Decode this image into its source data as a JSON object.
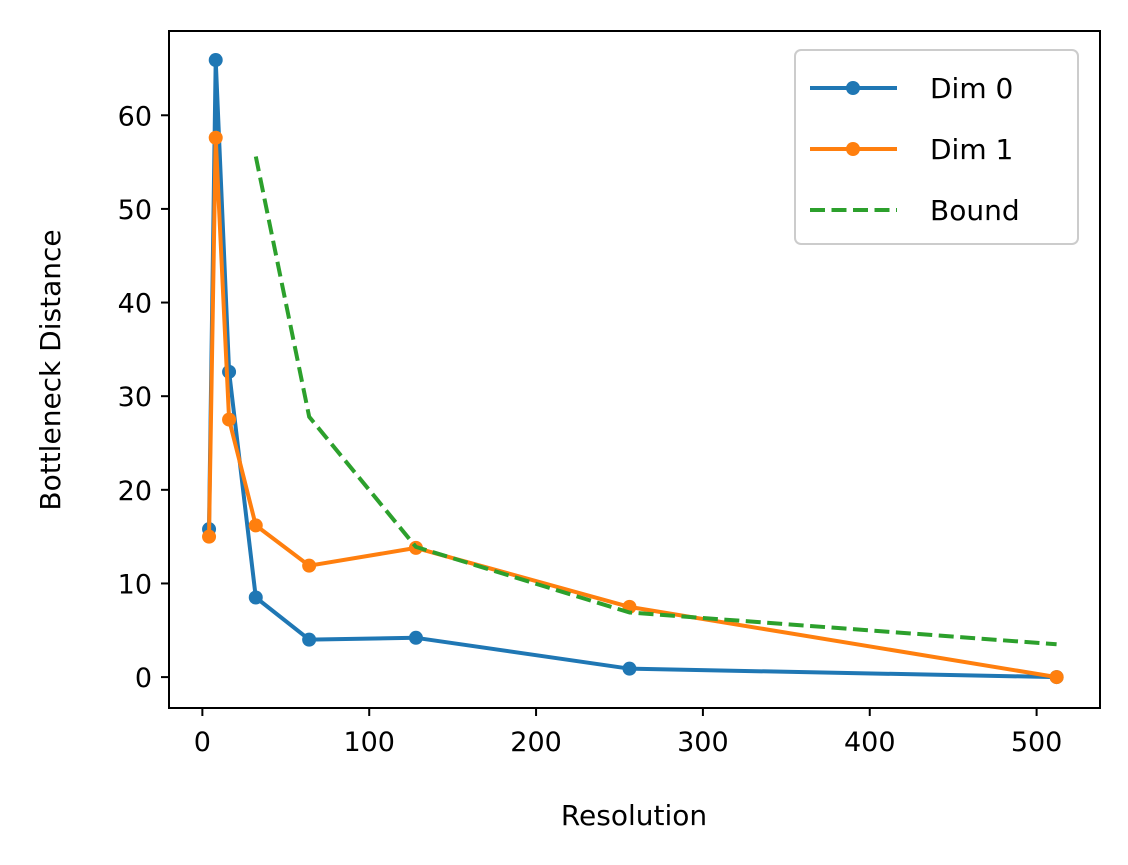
{
  "chart_data": {
    "type": "line",
    "title": "",
    "xlabel": "Resolution",
    "ylabel": "Bottleneck Distance",
    "xlim": [
      -20,
      538
    ],
    "ylim": [
      -3.3,
      69
    ],
    "xticks": [
      0,
      100,
      200,
      300,
      400,
      500
    ],
    "yticks": [
      0,
      10,
      20,
      30,
      40,
      50,
      60
    ],
    "grid": false,
    "legend_position": "top-right",
    "series": [
      {
        "name": "Dim 0",
        "color": "#1f77b4",
        "style": "solid",
        "marker": "circle",
        "x": [
          4,
          8,
          16,
          32,
          64,
          128,
          256,
          512
        ],
        "y": [
          15.8,
          65.9,
          32.6,
          8.5,
          4.0,
          4.2,
          0.9,
          0.0
        ]
      },
      {
        "name": "Dim 1",
        "color": "#ff7f0e",
        "style": "solid",
        "marker": "circle",
        "x": [
          4,
          8,
          16,
          32,
          64,
          128,
          256,
          512
        ],
        "y": [
          15.0,
          57.6,
          27.5,
          16.2,
          11.9,
          13.8,
          7.5,
          0.0
        ]
      },
      {
        "name": "Bound",
        "color": "#2ca02c",
        "style": "dashed",
        "marker": "none",
        "x": [
          32,
          64,
          128,
          256,
          512
        ],
        "y": [
          55.6,
          27.8,
          13.9,
          6.9,
          3.5
        ]
      }
    ]
  }
}
